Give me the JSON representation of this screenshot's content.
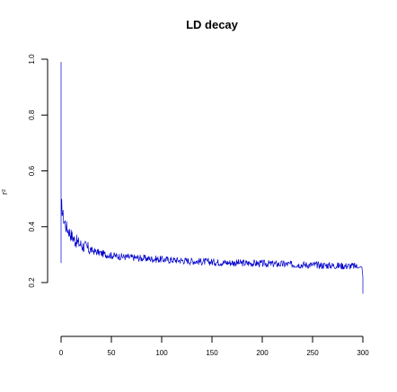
{
  "chart_data": {
    "type": "line",
    "title": "LD decay",
    "xlabel": "",
    "ylabel": "r²",
    "xlim": [
      0,
      300
    ],
    "ylim": [
      0.2,
      1.0
    ],
    "x_ticks": [
      0,
      50,
      100,
      150,
      200,
      250,
      300
    ],
    "y_ticks": [
      0.2,
      0.4,
      0.6,
      0.8,
      1.0
    ],
    "x_tick_labels": [
      "0",
      "50",
      "100",
      "150",
      "200",
      "250",
      "300"
    ],
    "y_tick_labels": [
      "0.2",
      "0.4",
      "0.6",
      "0.8",
      "1.0"
    ],
    "grid": false,
    "series": [
      {
        "color": "#0000cc",
        "x": [
          0,
          0,
          0,
          0.5,
          1,
          2,
          3,
          4,
          5,
          7,
          10,
          13,
          16,
          20,
          25,
          30,
          35,
          40,
          45,
          50,
          60,
          70,
          80,
          90,
          100,
          110,
          120,
          130,
          140,
          150,
          160,
          170,
          180,
          190,
          200,
          210,
          220,
          230,
          240,
          250,
          260,
          270,
          280,
          290,
          295,
          298,
          299,
          299.5,
          300,
          300
        ],
        "y": [
          0.99,
          0.27,
          0.44,
          0.48,
          0.46,
          0.44,
          0.42,
          0.415,
          0.4,
          0.39,
          0.37,
          0.355,
          0.345,
          0.335,
          0.325,
          0.315,
          0.31,
          0.305,
          0.3,
          0.297,
          0.293,
          0.29,
          0.287,
          0.285,
          0.283,
          0.281,
          0.279,
          0.277,
          0.275,
          0.274,
          0.272,
          0.271,
          0.27,
          0.269,
          0.268,
          0.267,
          0.266,
          0.265,
          0.264,
          0.263,
          0.262,
          0.261,
          0.26,
          0.259,
          0.258,
          0.257,
          0.255,
          0.24,
          0.22,
          0.16
        ]
      }
    ]
  }
}
